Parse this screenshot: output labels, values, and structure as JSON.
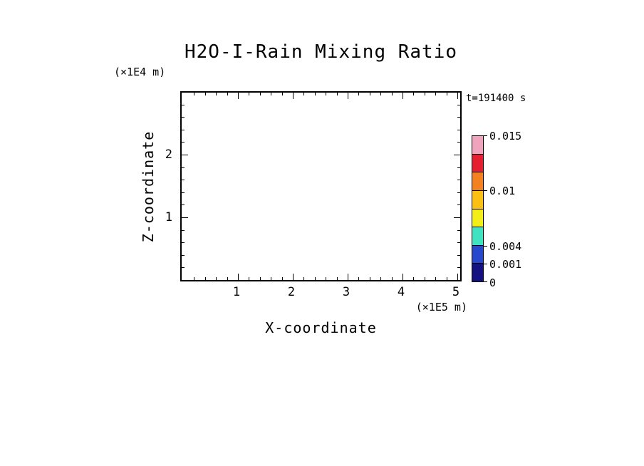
{
  "chart_data": {
    "type": "heatmap",
    "title": "H2O-I-Rain Mixing Ratio",
    "time_annotation": "t=191400 s",
    "xlabel": "X-coordinate",
    "x_unit_label": "(×1E5 m)",
    "ylabel": "Z-coordinate",
    "y_unit_label": "(×1E4 m)",
    "x_ticks": [
      "1",
      "2",
      "3",
      "4",
      "5"
    ],
    "y_ticks": [
      "1",
      "2"
    ],
    "xlim_units_1e5_m": [
      0,
      5.1
    ],
    "ylim_units_1e4_m": [
      0,
      3.0
    ],
    "grid": false,
    "legend_position": "right",
    "plot_field_values": [],
    "colorbar": {
      "orientation": "vertical",
      "position": "right",
      "tick_labels": [
        "0.015",
        "0.01",
        "0.004",
        "0.001",
        "0"
      ],
      "ticks": [
        {
          "label": "0.015",
          "pos": 0.0
        },
        {
          "label": "0.01",
          "pos": 0.375
        },
        {
          "label": "0.004",
          "pos": 0.75
        },
        {
          "label": "0.001",
          "pos": 0.875
        },
        {
          "label": "0",
          "pos": 1.0
        }
      ],
      "segment_colors_top_to_bottom": [
        "#f0a3bc",
        "#e51f2f",
        "#f4811f",
        "#fcc015",
        "#f4ee18",
        "#3fe3c1",
        "#2747cc",
        "#131280"
      ]
    },
    "colors": {
      "line": "#000000",
      "background": "#ffffff",
      "text": "#000000"
    }
  }
}
